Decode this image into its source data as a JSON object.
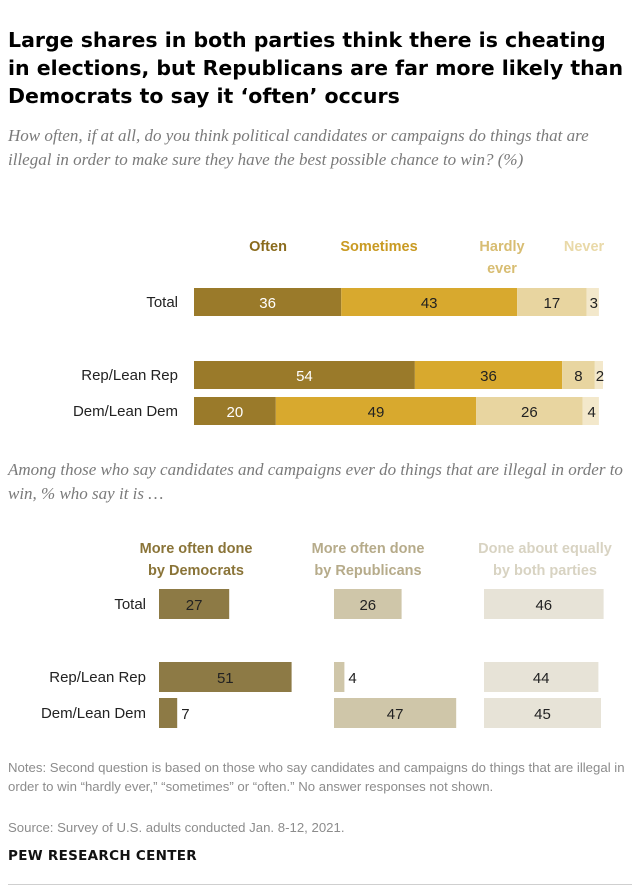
{
  "title": "Large shares in both parties think there is cheating in elections, but Republicans are far more likely than Democrats to say it ‘often’ occurs",
  "subtitle1": "How often, if at all, do you think political candidates or campaigns do things that are illegal in order to make sure they have the best possible chance to win? (%)",
  "subtitle2": "Among those who say candidates and campaigns ever do things that are illegal in order to win, % who say it is …",
  "notes": "Notes: Second question is based on those who say candidates and campaigns do things that are illegal in order to win “hardly ever,” “sometimes” or “often.” No answer responses not shown.",
  "source": "Source: Survey of U.S. adults conducted Jan. 8-12, 2021.",
  "logo": "PEW RESEARCH CENTER",
  "colors": {
    "often": "#9a7a2a",
    "sometimes": "#d8a92e",
    "hardly": "#e8d5a0",
    "never": "#f3e8cb",
    "dem": "#8d7a45",
    "rep": "#cfc6a9",
    "both": "#e7e3d7",
    "label_often": "#8a6b1c",
    "label_sometimes": "#c99a22",
    "label_hardly": "#d8bd72",
    "label_never": "#e9d9a8",
    "label_dem": "#8a7438",
    "label_rep": "#b6ab8a",
    "label_both": "#d8d3c2"
  },
  "chart_data": [
    {
      "type": "bar",
      "orientation": "horizontal",
      "stacked": true,
      "unit": "%",
      "categories": [
        "Total",
        "Rep/Lean Rep",
        "Dem/Lean Dem"
      ],
      "series": [
        {
          "name": "Often",
          "values": [
            36,
            54,
            20
          ]
        },
        {
          "name": "Sometimes",
          "values": [
            43,
            36,
            49
          ]
        },
        {
          "name": "Hardly ever",
          "values": [
            17,
            8,
            26
          ]
        },
        {
          "name": "Never",
          "values": [
            3,
            2,
            4
          ]
        }
      ],
      "xlim": [
        0,
        100
      ],
      "grid": false,
      "legend": "top"
    },
    {
      "type": "bar",
      "orientation": "horizontal",
      "stacked": false,
      "unit": "%",
      "categories": [
        "Total",
        "Rep/Lean Rep",
        "Dem/Lean Dem"
      ],
      "series": [
        {
          "name": "More often done by Democrats",
          "values": [
            27,
            51,
            7
          ]
        },
        {
          "name": "More often done by Republicans",
          "values": [
            26,
            4,
            47
          ]
        },
        {
          "name": "Done about equally by both parties",
          "values": [
            46,
            44,
            45
          ]
        }
      ],
      "xlim": [
        0,
        100
      ],
      "grid": false,
      "legend": "top"
    }
  ]
}
